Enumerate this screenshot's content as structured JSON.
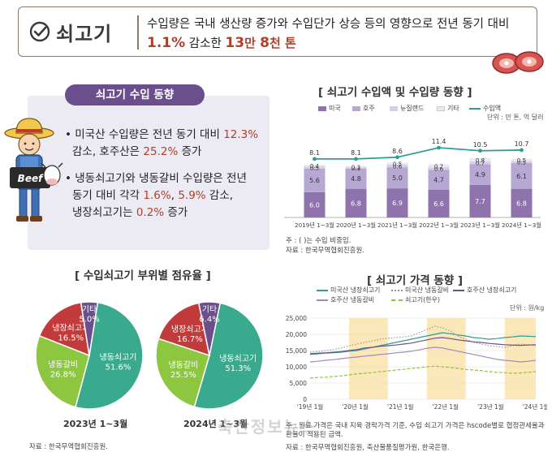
{
  "header": {
    "title": "쇠고기",
    "line1": "수입량은 국내 생산량 증가와 수입단가 상승 등의 영향으로 전년 동기 대비",
    "line2_num1": "1.1%",
    "line2_mid": " 감소한 ",
    "line2_num2": "13",
    "line2_unit": "만 ",
    "line2_num3": "8",
    "line2_end": "천 톤",
    "check_icon": "checkmark-circle-icon",
    "meat_icon": "steak-icon"
  },
  "trend": {
    "pill": "쇠고기 수입 동향",
    "b1_pre": "미국산 수입량은 전년 동기 대비 ",
    "b1_v1": "12.3%",
    "b1_mid": "감소, 호주산은 ",
    "b1_v2": "25.2%",
    "b1_end": " 증가",
    "b2_line1": "냉동쇠고기와 냉동갈비 수입량은 전년",
    "b2_pre": "동기 대비 각각 ",
    "b2_v1": "1.6%",
    "b2_sep": ", ",
    "b2_v2": "5.9%",
    "b2_mid": " 감소,",
    "b2_l3_pre": "냉장쇠고기는 ",
    "b2_v3": "0.2%",
    "b2_end": " 증가",
    "farmer_sign": "Beef",
    "farmer_icon": "farmer-cow-icon"
  },
  "colors": {
    "us": "#8e73ad",
    "au": "#b7a7d3",
    "nz": "#d7cfe6",
    "other": "#ebe8ef",
    "amount": "#2e9e8e",
    "frozen": "#3aaa8e",
    "frozen_rib": "#8dc63f",
    "chilled": "#c23b3b",
    "other_pie": "#6b4f8c",
    "highlight": "#b0402a",
    "band": "#fbe7b7"
  },
  "chart_data": [
    {
      "type": "bar",
      "title": "[ 쇠고기 수입액 및 수입량 동향 ]",
      "unit": "단위 : 만 톤, 억 달러",
      "categories": [
        "2019년 1~3월",
        "2020년 1~3월",
        "2021년 1~3월",
        "2022년 1~3월",
        "2023년 1~3월",
        "2024년 1~3월"
      ],
      "stacked": true,
      "series": [
        {
          "name": "미국",
          "values": [
            6.0,
            6.8,
            6.9,
            6.6,
            7.7,
            6.8
          ]
        },
        {
          "name": "호주",
          "values": [
            5.6,
            4.8,
            5.0,
            4.7,
            4.9,
            6.1
          ]
        },
        {
          "name": "뉴질랜드",
          "values": [
            0.5,
            0.3,
            0.6,
            0.6,
            0.7,
            0.5
          ]
        },
        {
          "name": "기타",
          "values": [
            0.4,
            0.3,
            0.5,
            0.7,
            0.8,
            0.5
          ]
        }
      ],
      "line": {
        "name": "수입액",
        "values": [
          8.1,
          8.1,
          8.6,
          11.4,
          10.5,
          10.7
        ]
      },
      "legend": "top",
      "note": "주 : ( )는 수입 비중임.",
      "source": "자료 : 한국무역협회진흥원."
    },
    {
      "type": "pie",
      "title": "[ 수입쇠고기 부위별 점유율 ]",
      "charts": [
        {
          "label": "2023년 1~3월",
          "slices": [
            {
              "name": "냉동쇠고기",
              "value": 51.6,
              "display": "51.6%"
            },
            {
              "name": "냉동갈비",
              "value": 26.8,
              "display": "26.8%"
            },
            {
              "name": "냉장쇠고기",
              "value": 16.5,
              "display": "16.5%"
            },
            {
              "name": "기타",
              "value": 5.0,
              "display": "5.0%"
            }
          ]
        },
        {
          "label": "2024년 1~3월",
          "slices": [
            {
              "name": "냉동쇠고기",
              "value": 51.3,
              "display": "51.3%"
            },
            {
              "name": "냉동갈비",
              "value": 25.5,
              "display": "25.5%"
            },
            {
              "name": "냉장쇠고기",
              "value": 16.7,
              "display": "16.7%"
            },
            {
              "name": "기타",
              "value": 6.4,
              "display": "6.4%"
            }
          ]
        }
      ],
      "source": "자료 : 한국무역협회진흥원."
    },
    {
      "type": "line",
      "title": "[ 쇠고기 가격 동향 ]",
      "unit": "단위 : 원/kg",
      "yticks": [
        "25,000",
        "20,000",
        "15,000",
        "10,000",
        "5,000",
        "0"
      ],
      "ylim": [
        0,
        25000
      ],
      "xticks": [
        "'19년 1월",
        "'20년 1월",
        "'21년 1월",
        "'22년 1월",
        "'23년 1월",
        "'24년 1월"
      ],
      "series": [
        {
          "name": "미국산 냉장쇠고기",
          "style": "solid",
          "color": "#2e9e8e",
          "values": [
            13800,
            14000,
            14200,
            14300,
            14500,
            14800,
            15000,
            15500,
            16000,
            16500,
            17000,
            17500,
            18000,
            18500,
            19000,
            19500,
            20000,
            20500,
            20200,
            19800,
            19500,
            19000,
            18800,
            18500,
            18700,
            19000,
            19200,
            19500,
            19400,
            19300
          ]
        },
        {
          "name": "미국산 냉동갈비",
          "style": "dotted",
          "color": "#999999",
          "values": [
            14500,
            14700,
            15000,
            15300,
            15800,
            16500,
            17000,
            17500,
            18000,
            18500,
            18800,
            19000,
            19200,
            19500,
            20500,
            21500,
            22500,
            22000,
            21000,
            19500,
            18500,
            17500,
            17000,
            16500,
            16200,
            16000,
            16500,
            17000,
            16800,
            16500
          ]
        },
        {
          "name": "호주산 냉장쇠고기",
          "style": "solid",
          "color": "#6b4f8c",
          "values": [
            14000,
            14200,
            14300,
            14500,
            14700,
            15000,
            15300,
            15800,
            16000,
            16300,
            16500,
            16700,
            17000,
            17300,
            17800,
            18300,
            18800,
            19000,
            18700,
            18300,
            18000,
            17700,
            17500,
            17200,
            17000,
            16800,
            16700,
            16600,
            16700,
            16800
          ]
        },
        {
          "name": "호주산 냉동갈비",
          "style": "solid",
          "color": "#9c8aba",
          "values": [
            11500,
            11700,
            12000,
            12200,
            12500,
            12800,
            13000,
            13300,
            13500,
            13800,
            14000,
            14300,
            14500,
            14800,
            15200,
            15700,
            16000,
            15800,
            15300,
            14800,
            14300,
            13800,
            13300,
            12800,
            12300,
            12000,
            11800,
            11500,
            11700,
            12000
          ]
        },
        {
          "name": "쇠고기(한우)",
          "style": "dashed",
          "color": "#8dc63f",
          "values": [
            6500,
            6700,
            6800,
            7000,
            7200,
            7500,
            7800,
            8000,
            8200,
            8500,
            8700,
            9000,
            9200,
            9500,
            9700,
            10000,
            10200,
            10000,
            9800,
            9500,
            9200,
            9000,
            8800,
            8500,
            8300,
            8200,
            8000,
            8100,
            8300,
            8500
          ]
        }
      ],
      "note": "주 : 원료 가격은 국내 지육 경락가격 기준, 수입 쇠고기 가격은 hscode별로 협정관세율과 환율이 적용된 금액.",
      "source": "자료 : 한국무역협회진흥원, 축산물품질평가원, 한국은행."
    }
  ],
  "watermark": "축산정보뉴스"
}
